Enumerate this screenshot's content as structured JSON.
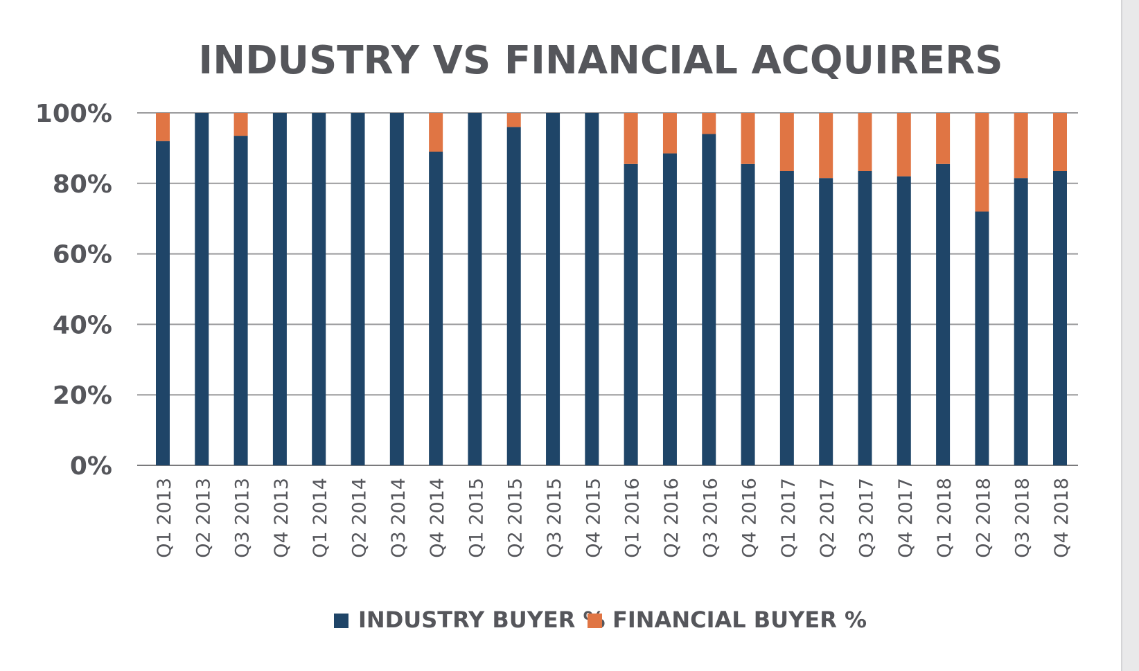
{
  "colors": {
    "industry": "#1f4568",
    "financial": "#e07544",
    "text": "#55565b",
    "grid": "#9a9a9c",
    "axis": "#7a7a7c"
  },
  "chart_data": {
    "type": "bar",
    "stacked": true,
    "title": "INDUSTRY VS FINANCIAL ACQUIRERS",
    "xlabel": "",
    "ylabel": "",
    "ylim": [
      0,
      100
    ],
    "yticks": [
      "0%",
      "20%",
      "40%",
      "60%",
      "80%",
      "100%"
    ],
    "ytick_values": [
      0,
      20,
      40,
      60,
      80,
      100
    ],
    "grid": true,
    "legend_position": "bottom",
    "categories": [
      "Q1 2013",
      "Q2 2013",
      "Q3 2013",
      "Q4 2013",
      "Q1 2014",
      "Q2 2014",
      "Q3 2014",
      "Q4 2014",
      "Q1 2015",
      "Q2 2015",
      "Q3 2015",
      "Q4 2015",
      "Q1 2016",
      "Q2 2016",
      "Q3 2016",
      "Q4 2016",
      "Q1 2017",
      "Q2 2017",
      "Q3 2017",
      "Q4 2017",
      "Q1 2018",
      "Q2 2018",
      "Q3 2018",
      "Q4 2018"
    ],
    "series": [
      {
        "name": "INDUSTRY BUYER %",
        "color": "#1f4568",
        "values": [
          92,
          100,
          93.5,
          100,
          100,
          100,
          100,
          89,
          100,
          96,
          100,
          100,
          85.5,
          88.5,
          94,
          85.5,
          83.5,
          81.5,
          83.5,
          82,
          85.5,
          72,
          81.5,
          83.5
        ]
      },
      {
        "name": "FINANCIAL BUYER %",
        "color": "#e07544",
        "values": [
          8,
          0,
          6.5,
          0,
          0,
          0,
          0,
          11,
          0,
          4,
          0,
          0,
          14.5,
          11.5,
          6,
          14.5,
          16.5,
          18.5,
          16.5,
          18,
          14.5,
          28,
          18.5,
          16.5
        ]
      }
    ]
  }
}
